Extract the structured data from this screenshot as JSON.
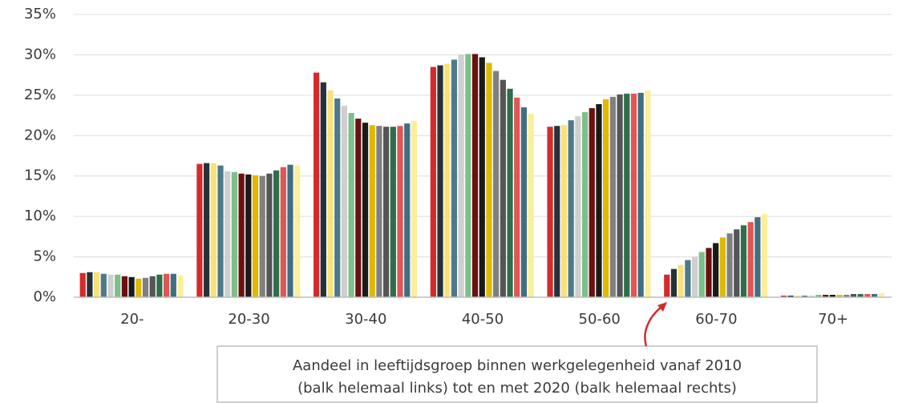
{
  "chart_data": {
    "type": "bar",
    "categories": [
      "20-",
      "20-30",
      "30-40",
      "40-50",
      "50-60",
      "60-70",
      "70+"
    ],
    "series": [
      {
        "color": "#d42a2a",
        "values": [
          3.0,
          16.5,
          27.8,
          28.5,
          21.1,
          2.8,
          0.2
        ]
      },
      {
        "color": "#253238",
        "values": [
          3.1,
          16.6,
          26.6,
          28.7,
          21.2,
          3.5,
          0.2
        ]
      },
      {
        "color": "#f7e27a",
        "values": [
          3.1,
          16.6,
          25.6,
          28.9,
          21.3,
          4.0,
          0.2
        ]
      },
      {
        "color": "#4d7a8a",
        "values": [
          2.9,
          16.3,
          24.6,
          29.4,
          21.9,
          4.6,
          0.2
        ]
      },
      {
        "color": "#cfcfcf",
        "values": [
          2.8,
          15.6,
          23.7,
          30.0,
          22.4,
          5.0,
          0.2
        ]
      },
      {
        "color": "#7dbf8a",
        "values": [
          2.8,
          15.5,
          22.8,
          30.1,
          22.9,
          5.6,
          0.3
        ]
      },
      {
        "color": "#6b1010",
        "values": [
          2.6,
          15.3,
          22.1,
          30.1,
          23.4,
          6.1,
          0.3
        ]
      },
      {
        "color": "#1a1a1a",
        "values": [
          2.5,
          15.2,
          21.6,
          29.7,
          23.9,
          6.7,
          0.3
        ]
      },
      {
        "color": "#e0b800",
        "values": [
          2.3,
          15.1,
          21.3,
          29.0,
          24.5,
          7.4,
          0.3
        ]
      },
      {
        "color": "#808080",
        "values": [
          2.4,
          15.0,
          21.2,
          28.0,
          24.8,
          7.9,
          0.3
        ]
      },
      {
        "color": "#555555",
        "values": [
          2.6,
          15.3,
          21.1,
          26.9,
          25.1,
          8.4,
          0.4
        ]
      },
      {
        "color": "#2e6e4a",
        "values": [
          2.8,
          15.7,
          21.1,
          25.8,
          25.2,
          8.9,
          0.4
        ]
      },
      {
        "color": "#e05555",
        "values": [
          2.9,
          16.1,
          21.2,
          24.7,
          25.2,
          9.3,
          0.4
        ]
      },
      {
        "color": "#3f6f80",
        "values": [
          2.9,
          16.4,
          21.5,
          23.5,
          25.3,
          9.9,
          0.4
        ]
      },
      {
        "color": "#fbef9a",
        "values": [
          2.7,
          16.3,
          21.8,
          22.7,
          25.6,
          10.3,
          0.5
        ]
      }
    ],
    "ylim": [
      0,
      35
    ],
    "yticks": [
      {
        "value": 0,
        "label": "0%"
      },
      {
        "value": 5,
        "label": "5%"
      },
      {
        "value": 10,
        "label": "10%"
      },
      {
        "value": 15,
        "label": "15%"
      },
      {
        "value": 20,
        "label": "20%"
      },
      {
        "value": 25,
        "label": "25%"
      },
      {
        "value": 30,
        "label": "30%"
      },
      {
        "value": 35,
        "label": "35%"
      }
    ],
    "grid": true,
    "annotation": [
      "Aandeel in leeftijdsgroep binnen werkgelegenheid vanaf 2010",
      "(balk helemaal links) tot en met 2020 (balk helemaal rechts)"
    ]
  }
}
